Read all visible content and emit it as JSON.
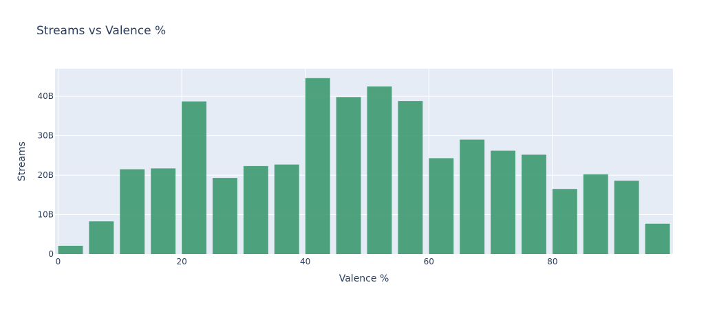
{
  "chart_data": {
    "type": "bar",
    "title": "Streams vs Valence %",
    "xlabel": "Valence %",
    "ylabel": "Streams",
    "bar_color": "#3d9970",
    "plot_bg": "#e5ecf6",
    "grid": true,
    "xlim": [
      -0.5,
      99.5
    ],
    "ylim": [
      0,
      47000000000
    ],
    "x_ticks": [
      {
        "value": 0,
        "label": "0"
      },
      {
        "value": 20,
        "label": "20"
      },
      {
        "value": 40,
        "label": "40"
      },
      {
        "value": 60,
        "label": "60"
      },
      {
        "value": 80,
        "label": "80"
      }
    ],
    "y_ticks": [
      {
        "value": 0,
        "label": "0"
      },
      {
        "value": 10000000000,
        "label": "10B"
      },
      {
        "value": 20000000000,
        "label": "20B"
      },
      {
        "value": 30000000000,
        "label": "30B"
      },
      {
        "value": 40000000000,
        "label": "40B"
      }
    ],
    "bin_width": 5,
    "x": [
      2,
      7,
      12,
      17,
      22,
      27,
      32,
      37,
      42,
      47,
      52,
      57,
      62,
      67,
      72,
      77,
      82,
      87,
      92,
      97
    ],
    "values": [
      2100000000,
      8300000000,
      21500000000,
      21700000000,
      38700000000,
      19300000000,
      22300000000,
      22700000000,
      44600000000,
      39800000000,
      42500000000,
      38800000000,
      24300000000,
      29000000000,
      26200000000,
      25200000000,
      16500000000,
      20200000000,
      18600000000,
      7700000000
    ]
  }
}
